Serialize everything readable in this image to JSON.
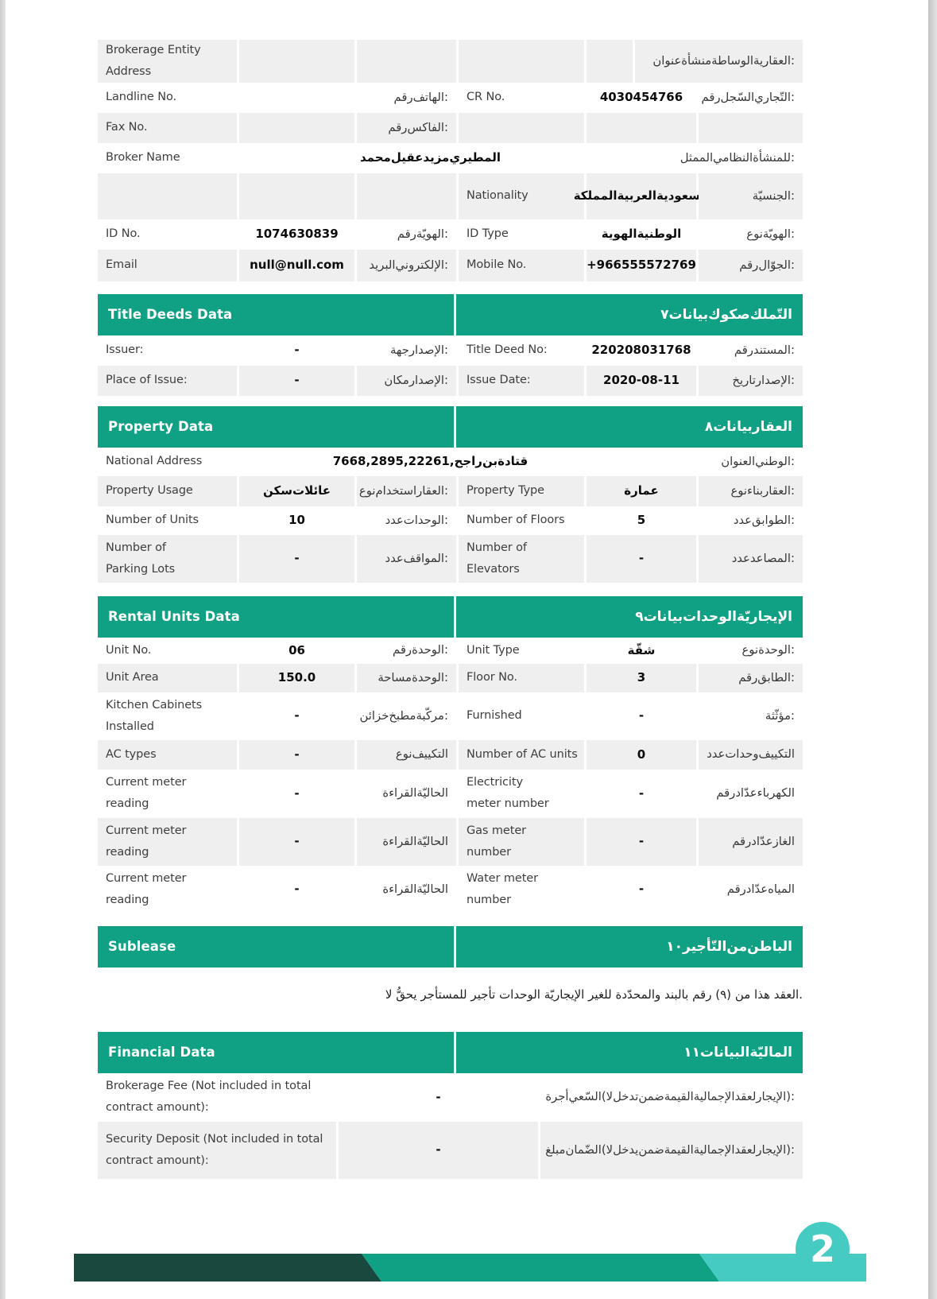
{
  "top_table": {
    "rows": [
      {
        "cells": [
          "Brokerage Entity Address",
          "",
          "",
          "",
          "",
          "عنوان منشأة الوساطة العقارية:"
        ]
      },
      {
        "cells": [
          "Landline No.",
          "",
          "رقم الهاتف:",
          "CR No.",
          "4030454766",
          "رقم السّجل التّجاري:"
        ]
      },
      {
        "cells": [
          "Fax No.",
          "",
          "رقم الفاكس:",
          "",
          "",
          ""
        ]
      },
      {
        "cells": [
          "Broker Name",
          "محمد عقيل مزيد المطيري",
          "الممثل النظامي للمنشأة:"
        ]
      },
      {
        "cells": [
          "",
          "",
          "",
          "Nationality",
          "المملكة العربية السعودية",
          "الجنسيّة:"
        ]
      },
      {
        "cells": [
          "ID No.",
          "1074630839",
          "رقم الهويّة:",
          "ID Type",
          "الهوية الوطنية",
          "نوع الهويّة:"
        ]
      },
      {
        "cells": [
          "Email",
          "null@null.com",
          "البريد الإلكتروني:",
          "Mobile No.",
          "+966555572769",
          "رقم الجوّال:"
        ]
      }
    ]
  },
  "sections": [
    {
      "title_en": "Title Deeds Data",
      "title_ar": "٧ بيانات صكوك التّملك",
      "rows": [
        {
          "cells": [
            "Issuer:",
            "-",
            "جهة الإصدار:",
            "Title Deed No:",
            "220208031768",
            "رقم المستند:"
          ]
        },
        {
          "cells": [
            "Place of Issue:",
            "-",
            "مكان الإصدار:",
            "Issue Date:",
            "2020-08-11",
            "تاريخ الإصدار:"
          ]
        }
      ]
    },
    {
      "title_en": "Property Data",
      "title_ar": "٨ بيانات العقار",
      "rows": [
        {
          "cells": [
            "National Address",
            "7668, 2895, 22261, راجح بن قتادة",
            "العنوان الوطني:"
          ]
        },
        {
          "cells": [
            "Property Usage",
            "سكن عائلات",
            "نوع استخدام العقار:",
            "Property Type",
            "عمارة",
            "نوع بناء العقار:"
          ]
        },
        {
          "cells": [
            "Number of Units",
            "10",
            "عدد الوحدات:",
            "Number of Floors",
            "5",
            "عدد الطوابق:"
          ]
        },
        {
          "cells": [
            "Number of Parking Lots",
            "-",
            "عدد المواقف:",
            "Number of Elevators",
            "-",
            "عدد المصاعد:"
          ]
        }
      ]
    },
    {
      "title_en": "Rental Units Data",
      "title_ar": "٩ بيانات الوحدات الإيجاريّة",
      "rows": [
        {
          "cells": [
            "Unit No.",
            "06",
            "رقم الوحدة:",
            "Unit Type",
            "شقّة",
            "نوع الوحدة:"
          ]
        },
        {
          "cells": [
            "Unit Area",
            "150.0",
            "مساحة الوحدة:",
            "Floor No.",
            "3",
            "رقم الطابق:"
          ]
        },
        {
          "cells": [
            "Kitchen Cabinets Installed",
            "-",
            "خزائن مطبخ مركّبة:",
            "Furnished",
            "-",
            "مؤثّثة:"
          ]
        },
        {
          "cells": [
            "AC types",
            "-",
            "نوع التكييف",
            "Number of AC units",
            "0",
            "عدد وحدات التكييف"
          ]
        },
        {
          "cells": [
            "Current meter reading",
            "-",
            "القراءة الحاليّة",
            "Electricity meter number",
            "-",
            "رقم عدّاد الكهرباء"
          ]
        },
        {
          "cells": [
            "Current meter reading",
            "-",
            "القراءة الحاليّة",
            "Gas meter number",
            "-",
            "رقم عدّاد الغاز"
          ]
        },
        {
          "cells": [
            "Current meter reading",
            "-",
            "القراءة الحاليّة",
            "Water meter number",
            "-",
            "رقم عدّاد المياه"
          ]
        }
      ]
    },
    {
      "title_en": "Sublease",
      "title_ar": "١٠ التّأجير من الباطن",
      "note": "لا يحقُّ للمستأجر تأجير الوحدات الإيجاريّة للغير والمحدّدة بالبند رقم (٩) من هذا العقد."
    },
    {
      "title_en": "Financial Data",
      "title_ar": "١١ البيانات الماليّة",
      "rows": [
        {
          "cells": [
            "Brokerage Fee (Not included in total contract amount):",
            "-",
            "أجرة السّعي (لا تدخل ضمن القيمة الإجمالية لعقد الإيجار):"
          ]
        },
        {
          "cells": [
            "Security Deposit (Not included in total contract amount):",
            "-",
            "مبلغ الضّمان (لا يدخل ضمن القيمة الإجمالية لعقد الإيجار):"
          ]
        }
      ]
    }
  ],
  "footer": {
    "page_number": "2",
    "colors": {
      "dark": "#19493e",
      "mid": "#10a184",
      "light": "#45cbc1"
    }
  },
  "brand": {
    "header_green": "#10a184",
    "row_gray": "#efefef"
  }
}
